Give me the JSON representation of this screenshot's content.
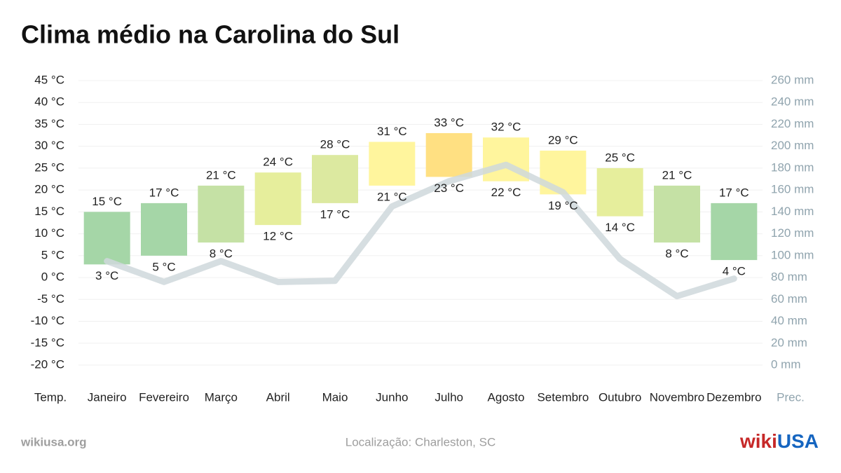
{
  "chart_data": {
    "type": "bar",
    "title": "Clima médio na Carolina do Sul",
    "y_label": "Temp.",
    "y2_label": "Prec.",
    "source": "wikiusa.org",
    "note": "Localização: Charleston, SC",
    "logo_prefix": "wiki",
    "logo_suffix": "USA",
    "categories": [
      "Janeiro",
      "Fevereiro",
      "Março",
      "Abril",
      "Maio",
      "Junho",
      "Julho",
      "Agosto",
      "Setembro",
      "Outubro",
      "Novembro",
      "Dezembro"
    ],
    "colors": [
      "#a5d6a7",
      "#a5d6a7",
      "#c5e1a5",
      "#e6ee9c",
      "#dce9a0",
      "#fff59d",
      "#ffe082",
      "#fff59d",
      "#fff59d",
      "#e6ee9c",
      "#c5e1a5",
      "#a5d6a7"
    ],
    "series": [
      {
        "values": [
          15,
          17,
          21,
          24,
          28,
          31,
          33,
          32,
          29,
          25,
          21,
          17
        ],
        "value_labels": [
          "15 °C",
          "17 °C",
          "21 °C",
          "24 °C",
          "28 °C",
          "31 °C",
          "33 °C",
          "32 °C",
          "29 °C",
          "25 °C",
          "21 °C",
          "17 °C"
        ]
      },
      {
        "values": [
          3,
          5,
          8,
          12,
          17,
          21,
          23,
          22,
          19,
          14,
          8,
          4
        ],
        "value_labels": [
          "3 °C",
          "5 °C",
          "8 °C",
          "12 °C",
          "17 °C",
          "21 °C",
          "23 °C",
          "22 °C",
          "19 °C",
          "14 °C",
          "8 °C",
          "4 °C"
        ]
      },
      {
        "axis": "y2",
        "color": "#cfd8dc",
        "values": [
          95,
          76,
          95,
          76,
          77,
          145,
          168,
          183,
          158,
          97,
          63,
          79
        ]
      }
    ],
    "ylim": [
      -20,
      45
    ],
    "yticks": [
      {
        "value": 45,
        "label": "45 °C"
      },
      {
        "value": 40,
        "label": "40 °C"
      },
      {
        "value": 35,
        "label": "35 °C"
      },
      {
        "value": 30,
        "label": "30 °C"
      },
      {
        "value": 25,
        "label": "25 °C"
      },
      {
        "value": 20,
        "label": "20 °C"
      },
      {
        "value": 15,
        "label": "15 °C"
      },
      {
        "value": 10,
        "label": "10 °C"
      },
      {
        "value": 5,
        "label": "5 °C"
      },
      {
        "value": 0,
        "label": "0 °C"
      },
      {
        "value": -5,
        "label": "-5 °C"
      },
      {
        "value": -10,
        "label": "-10 °C"
      },
      {
        "value": -15,
        "label": "-15 °C"
      },
      {
        "value": -20,
        "label": "-20 °C"
      }
    ],
    "y2lim": [
      0,
      260
    ],
    "y2ticks": [
      {
        "value": 260,
        "label": "260 mm"
      },
      {
        "value": 240,
        "label": "240 mm"
      },
      {
        "value": 220,
        "label": "220 mm"
      },
      {
        "value": 200,
        "label": "200 mm"
      },
      {
        "value": 180,
        "label": "180 mm"
      },
      {
        "value": 160,
        "label": "160 mm"
      },
      {
        "value": 140,
        "label": "140 mm"
      },
      {
        "value": 120,
        "label": "120 mm"
      },
      {
        "value": 100,
        "label": "100 mm"
      },
      {
        "value": 80,
        "label": "80 mm"
      },
      {
        "value": 60,
        "label": "60 mm"
      },
      {
        "value": 40,
        "label": "40 mm"
      },
      {
        "value": 20,
        "label": "20 mm"
      },
      {
        "value": 0,
        "label": "0 mm"
      }
    ],
    "grid": true
  }
}
